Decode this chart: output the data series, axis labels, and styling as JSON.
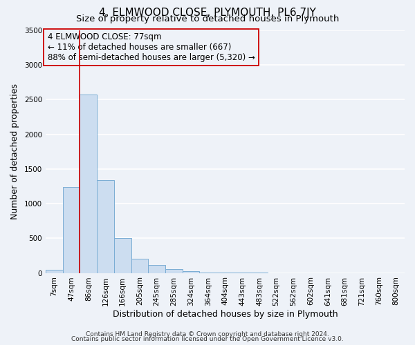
{
  "title": "4, ELMWOOD CLOSE, PLYMOUTH, PL6 7JY",
  "subtitle": "Size of property relative to detached houses in Plymouth",
  "xlabel": "Distribution of detached houses by size in Plymouth",
  "ylabel": "Number of detached properties",
  "bar_labels": [
    "7sqm",
    "47sqm",
    "86sqm",
    "126sqm",
    "166sqm",
    "205sqm",
    "245sqm",
    "285sqm",
    "324sqm",
    "364sqm",
    "404sqm",
    "443sqm",
    "483sqm",
    "522sqm",
    "562sqm",
    "602sqm",
    "641sqm",
    "681sqm",
    "721sqm",
    "760sqm",
    "800sqm"
  ],
  "bar_values": [
    50,
    1240,
    2570,
    1340,
    500,
    200,
    115,
    55,
    30,
    10,
    5,
    2,
    2,
    0,
    0,
    0,
    0,
    0,
    0,
    0,
    0
  ],
  "bar_color": "#ccddf0",
  "bar_edge_color": "#7aadd4",
  "ylim": [
    0,
    3500
  ],
  "yticks": [
    0,
    500,
    1000,
    1500,
    2000,
    2500,
    3000,
    3500
  ],
  "vline_color": "#cc0000",
  "annotation_text": "4 ELMWOOD CLOSE: 77sqm\n← 11% of detached houses are smaller (667)\n88% of semi-detached houses are larger (5,320) →",
  "annotation_box_edgecolor": "#cc0000",
  "footer_line1": "Contains HM Land Registry data © Crown copyright and database right 2024.",
  "footer_line2": "Contains public sector information licensed under the Open Government Licence v3.0.",
  "background_color": "#eef2f8",
  "grid_color": "#ffffff",
  "title_fontsize": 11,
  "subtitle_fontsize": 9.5,
  "axis_label_fontsize": 9,
  "tick_fontsize": 7.5,
  "annot_fontsize": 8.5,
  "footer_fontsize": 6.5
}
